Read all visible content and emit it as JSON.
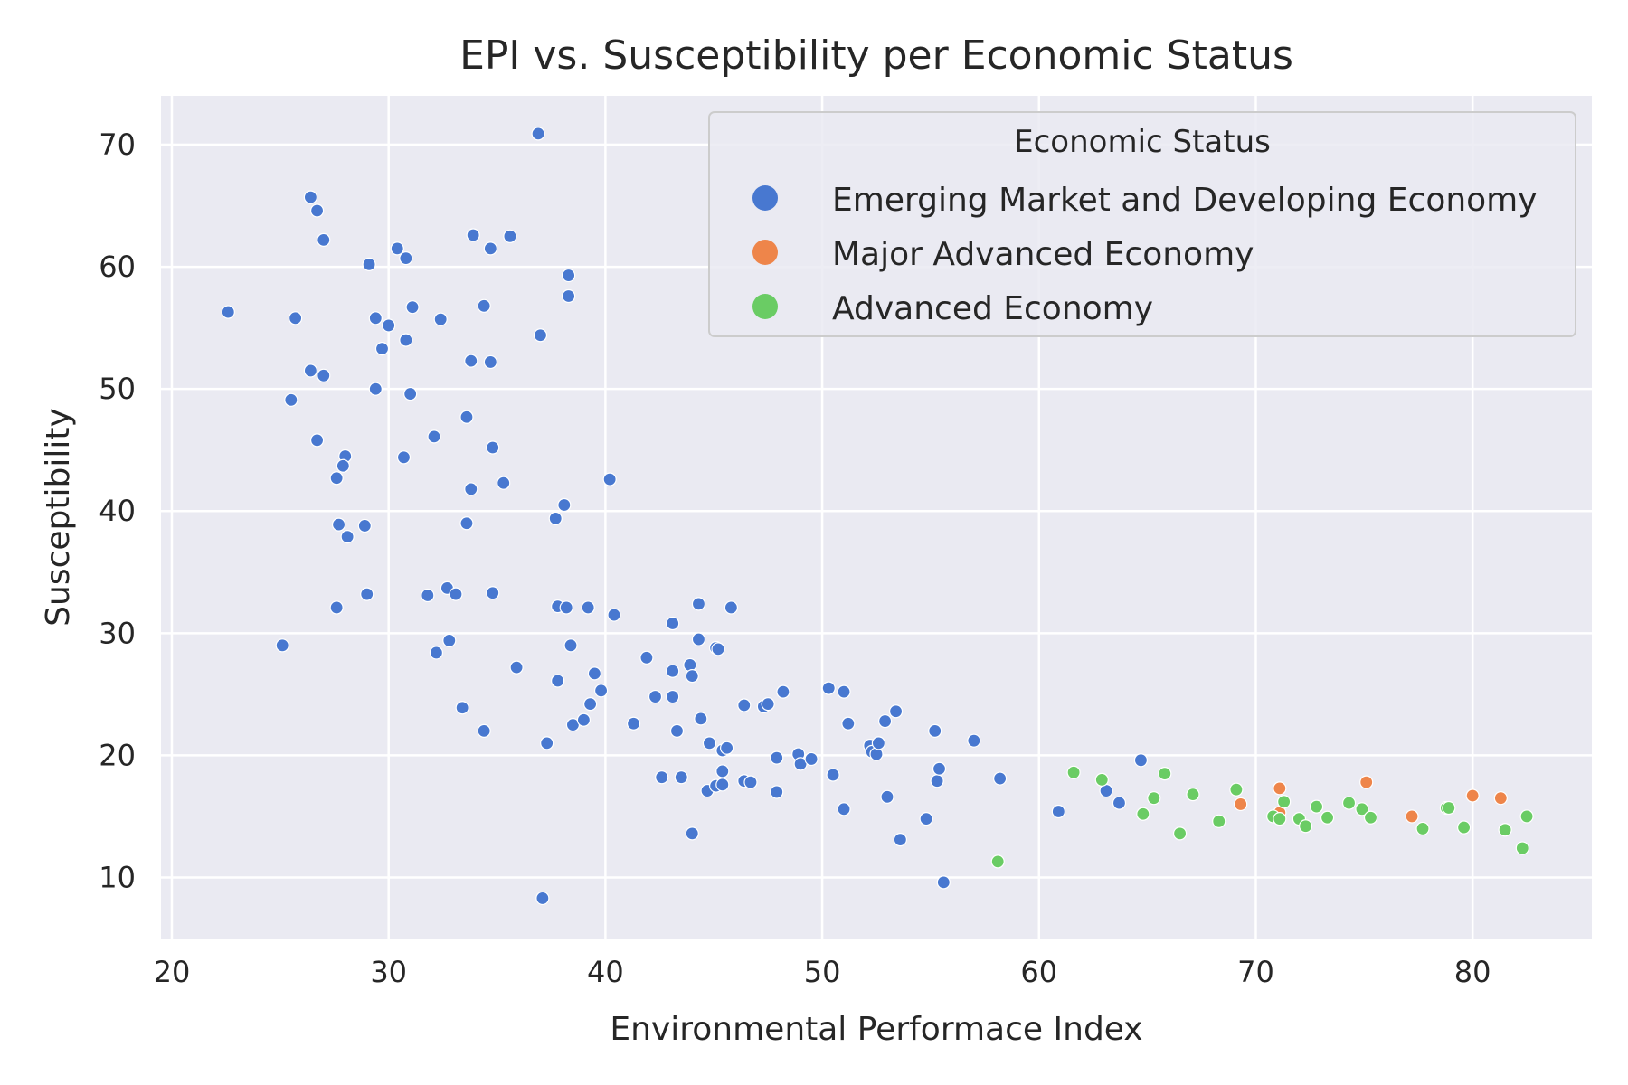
{
  "chart_data": {
    "type": "scatter",
    "title": "EPI vs. Susceptibility per Economic Status",
    "xlabel": "Environmental Performace Index",
    "ylabel": "Susceptibility",
    "xlim": [
      19.5,
      85.5
    ],
    "ylim": [
      5,
      74
    ],
    "xticks": [
      20,
      30,
      40,
      50,
      60,
      70,
      80
    ],
    "yticks": [
      10,
      20,
      30,
      40,
      50,
      60,
      70
    ],
    "grid": true,
    "legend": {
      "title": "Economic Status",
      "position": "top-right"
    },
    "series": [
      {
        "name": "Emerging Market and Developing Economy",
        "color": "#4878d0",
        "points": [
          [
            22.6,
            56.3
          ],
          [
            25.5,
            49.1
          ],
          [
            25.1,
            29.0
          ],
          [
            25.7,
            55.8
          ],
          [
            26.4,
            65.7
          ],
          [
            26.7,
            64.6
          ],
          [
            27.0,
            62.2
          ],
          [
            26.4,
            51.5
          ],
          [
            27.0,
            51.1
          ],
          [
            26.7,
            45.8
          ],
          [
            28.0,
            44.5
          ],
          [
            27.9,
            43.7
          ],
          [
            27.6,
            42.7
          ],
          [
            27.7,
            38.9
          ],
          [
            28.1,
            37.9
          ],
          [
            28.9,
            38.8
          ],
          [
            27.6,
            32.1
          ],
          [
            29.0,
            33.2
          ],
          [
            29.1,
            60.2
          ],
          [
            29.4,
            55.8
          ],
          [
            29.7,
            53.3
          ],
          [
            30.0,
            55.2
          ],
          [
            29.4,
            50.0
          ],
          [
            30.4,
            61.5
          ],
          [
            30.8,
            60.7
          ],
          [
            30.8,
            54.0
          ],
          [
            31.1,
            56.7
          ],
          [
            31.0,
            49.6
          ],
          [
            30.7,
            44.4
          ],
          [
            32.4,
            55.7
          ],
          [
            32.1,
            46.1
          ],
          [
            31.8,
            33.1
          ],
          [
            32.7,
            33.7
          ],
          [
            33.1,
            33.2
          ],
          [
            32.2,
            28.4
          ],
          [
            32.8,
            29.4
          ],
          [
            33.4,
            23.9
          ],
          [
            33.9,
            62.6
          ],
          [
            34.7,
            61.5
          ],
          [
            33.8,
            52.3
          ],
          [
            34.7,
            52.2
          ],
          [
            34.4,
            56.8
          ],
          [
            33.6,
            47.7
          ],
          [
            34.8,
            45.2
          ],
          [
            33.8,
            41.8
          ],
          [
            35.3,
            42.3
          ],
          [
            33.6,
            39.0
          ],
          [
            34.8,
            33.3
          ],
          [
            34.4,
            22.0
          ],
          [
            35.6,
            62.5
          ],
          [
            36.9,
            70.9
          ],
          [
            37.0,
            54.4
          ],
          [
            35.9,
            27.2
          ],
          [
            37.3,
            21.0
          ],
          [
            37.1,
            8.3
          ],
          [
            38.3,
            59.3
          ],
          [
            38.3,
            57.6
          ],
          [
            38.1,
            40.5
          ],
          [
            37.7,
            39.4
          ],
          [
            37.8,
            32.2
          ],
          [
            38.2,
            32.1
          ],
          [
            39.2,
            32.1
          ],
          [
            38.4,
            29.0
          ],
          [
            37.8,
            26.1
          ],
          [
            38.5,
            22.5
          ],
          [
            39.0,
            22.9
          ],
          [
            39.3,
            24.2
          ],
          [
            39.5,
            26.7
          ],
          [
            39.8,
            25.3
          ],
          [
            40.2,
            42.6
          ],
          [
            40.4,
            31.5
          ],
          [
            41.3,
            22.6
          ],
          [
            41.9,
            28.0
          ],
          [
            42.3,
            24.8
          ],
          [
            42.6,
            18.2
          ],
          [
            43.1,
            30.8
          ],
          [
            43.1,
            26.9
          ],
          [
            43.1,
            24.8
          ],
          [
            43.3,
            22.0
          ],
          [
            43.5,
            18.2
          ],
          [
            43.9,
            27.4
          ],
          [
            44.0,
            26.5
          ],
          [
            44.0,
            13.6
          ],
          [
            44.3,
            32.4
          ],
          [
            44.3,
            29.5
          ],
          [
            44.4,
            23.0
          ],
          [
            44.7,
            17.1
          ],
          [
            44.8,
            21.0
          ],
          [
            45.1,
            28.8
          ],
          [
            45.2,
            28.7
          ],
          [
            45.1,
            17.5
          ],
          [
            45.4,
            18.7
          ],
          [
            45.4,
            20.4
          ],
          [
            45.6,
            20.6
          ],
          [
            45.4,
            17.6
          ],
          [
            45.8,
            32.1
          ],
          [
            46.4,
            24.1
          ],
          [
            46.4,
            17.9
          ],
          [
            46.7,
            17.8
          ],
          [
            47.3,
            24.0
          ],
          [
            47.5,
            24.2
          ],
          [
            47.9,
            19.8
          ],
          [
            48.2,
            25.2
          ],
          [
            47.9,
            17.0
          ],
          [
            48.9,
            20.1
          ],
          [
            49.0,
            19.3
          ],
          [
            49.5,
            19.7
          ],
          [
            50.3,
            25.5
          ],
          [
            50.5,
            18.4
          ],
          [
            51.0,
            25.2
          ],
          [
            51.2,
            22.6
          ],
          [
            51.0,
            15.6
          ],
          [
            52.2,
            20.8
          ],
          [
            52.3,
            20.3
          ],
          [
            52.5,
            20.1
          ],
          [
            52.6,
            21.0
          ],
          [
            52.9,
            22.8
          ],
          [
            53.0,
            16.6
          ],
          [
            53.4,
            23.6
          ],
          [
            53.6,
            13.1
          ],
          [
            54.8,
            14.8
          ],
          [
            55.2,
            22.0
          ],
          [
            55.3,
            17.9
          ],
          [
            55.4,
            18.9
          ],
          [
            55.6,
            9.6
          ],
          [
            57.0,
            21.2
          ],
          [
            58.2,
            18.1
          ],
          [
            60.9,
            15.4
          ],
          [
            63.1,
            17.1
          ],
          [
            63.7,
            16.1
          ],
          [
            64.7,
            19.6
          ]
        ]
      },
      {
        "name": "Major Advanced Economy",
        "color": "#ee854a",
        "points": [
          [
            69.3,
            16.0
          ],
          [
            71.1,
            17.3
          ],
          [
            71.1,
            15.3
          ],
          [
            75.1,
            17.8
          ],
          [
            77.2,
            15.0
          ],
          [
            80.0,
            16.7
          ],
          [
            81.3,
            16.5
          ]
        ]
      },
      {
        "name": "Advanced Economy",
        "color": "#6acc64",
        "points": [
          [
            58.1,
            11.3
          ],
          [
            61.6,
            18.6
          ],
          [
            62.9,
            18.0
          ],
          [
            64.8,
            15.2
          ],
          [
            65.3,
            16.5
          ],
          [
            65.8,
            18.5
          ],
          [
            66.5,
            13.6
          ],
          [
            67.1,
            16.8
          ],
          [
            68.3,
            14.6
          ],
          [
            69.1,
            17.2
          ],
          [
            70.8,
            15.0
          ],
          [
            71.1,
            14.8
          ],
          [
            71.3,
            16.2
          ],
          [
            72.0,
            14.8
          ],
          [
            72.3,
            14.2
          ],
          [
            72.8,
            15.8
          ],
          [
            73.3,
            14.9
          ],
          [
            74.3,
            16.1
          ],
          [
            74.9,
            15.6
          ],
          [
            75.3,
            14.9
          ],
          [
            77.7,
            14.0
          ],
          [
            78.8,
            15.7
          ],
          [
            78.9,
            15.7
          ],
          [
            79.6,
            14.1
          ],
          [
            81.5,
            13.9
          ],
          [
            82.3,
            12.4
          ],
          [
            82.5,
            15.0
          ]
        ]
      }
    ]
  }
}
